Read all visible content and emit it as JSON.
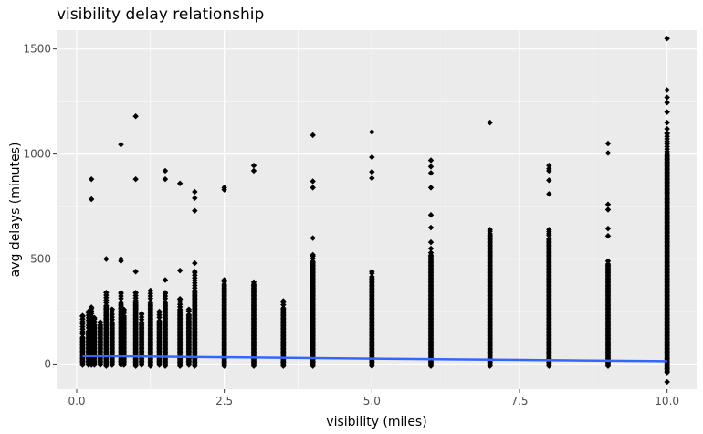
{
  "chart_data": {
    "type": "scatter",
    "title": "visibility delay relationship",
    "xlabel": "visibility (miles)",
    "ylabel": "avg delays (minutes)",
    "xlim": [
      -0.34,
      10.5
    ],
    "ylim": [
      -120,
      1590
    ],
    "x_ticks": [
      0.0,
      2.5,
      5.0,
      7.5,
      10.0
    ],
    "x_tick_labels": [
      "0.0",
      "2.5",
      "5.0",
      "7.5",
      "10.0"
    ],
    "y_ticks": [
      0,
      500,
      1000,
      1500
    ],
    "y_tick_labels": [
      "0",
      "500",
      "1000",
      "1500"
    ],
    "grid": true,
    "legend": "none",
    "colors": {
      "panel": "#ebebeb",
      "grid": "#ffffff",
      "points": "#000000",
      "trend": "#3366ff"
    },
    "columns": [
      {
        "x": 0.1,
        "min": -5,
        "dense_max": 130,
        "max": 230
      },
      {
        "x": 0.2,
        "min": -5,
        "dense_max": 160,
        "max": 250
      },
      {
        "x": 0.25,
        "min": -5,
        "dense_max": 180,
        "max": 270
      },
      {
        "x": 0.3,
        "min": -5,
        "dense_max": 190,
        "max": 220
      },
      {
        "x": 0.4,
        "min": -5,
        "dense_max": 190,
        "max": 200
      },
      {
        "x": 0.5,
        "min": -10,
        "dense_max": 280,
        "max": 340
      },
      {
        "x": 0.6,
        "min": -5,
        "dense_max": 200,
        "max": 260
      },
      {
        "x": 0.75,
        "min": -5,
        "dense_max": 300,
        "max": 340
      },
      {
        "x": 0.8,
        "min": -5,
        "dense_max": 230,
        "max": 260
      },
      {
        "x": 1.0,
        "min": -10,
        "dense_max": 290,
        "max": 340
      },
      {
        "x": 1.1,
        "min": -5,
        "dense_max": 200,
        "max": 240
      },
      {
        "x": 1.25,
        "min": -10,
        "dense_max": 300,
        "max": 350
      },
      {
        "x": 1.4,
        "min": -5,
        "dense_max": 210,
        "max": 250
      },
      {
        "x": 1.5,
        "min": -10,
        "dense_max": 300,
        "max": 340
      },
      {
        "x": 1.75,
        "min": -10,
        "dense_max": 260,
        "max": 310
      },
      {
        "x": 1.9,
        "min": -5,
        "dense_max": 240,
        "max": 260
      },
      {
        "x": 2.0,
        "min": -10,
        "dense_max": 350,
        "max": 440
      },
      {
        "x": 2.5,
        "min": -10,
        "dense_max": 380,
        "max": 400
      },
      {
        "x": 3.0,
        "min": -10,
        "dense_max": 380,
        "max": 390
      },
      {
        "x": 3.5,
        "min": -10,
        "dense_max": 270,
        "max": 300
      },
      {
        "x": 4.0,
        "min": -10,
        "dense_max": 490,
        "max": 520
      },
      {
        "x": 5.0,
        "min": -10,
        "dense_max": 420,
        "max": 440
      },
      {
        "x": 6.0,
        "min": -10,
        "dense_max": 520,
        "max": 530
      },
      {
        "x": 7.0,
        "min": -10,
        "dense_max": 620,
        "max": 640
      },
      {
        "x": 8.0,
        "min": -10,
        "dense_max": 600,
        "max": 620
      },
      {
        "x": 9.0,
        "min": -10,
        "dense_max": 480,
        "max": 490
      },
      {
        "x": 10.0,
        "min": -40,
        "dense_max": 1000,
        "max": 1100
      }
    ],
    "outliers": [
      {
        "x": 0.25,
        "y": 880
      },
      {
        "x": 0.25,
        "y": 785
      },
      {
        "x": 0.5,
        "y": 500
      },
      {
        "x": 0.75,
        "y": 1045
      },
      {
        "x": 0.75,
        "y": 500
      },
      {
        "x": 0.75,
        "y": 490
      },
      {
        "x": 1.0,
        "y": 1180
      },
      {
        "x": 1.0,
        "y": 880
      },
      {
        "x": 1.0,
        "y": 440
      },
      {
        "x": 1.5,
        "y": 920
      },
      {
        "x": 1.5,
        "y": 880
      },
      {
        "x": 1.5,
        "y": 400
      },
      {
        "x": 1.75,
        "y": 860
      },
      {
        "x": 1.75,
        "y": 445
      },
      {
        "x": 2.0,
        "y": 820
      },
      {
        "x": 2.0,
        "y": 790
      },
      {
        "x": 2.0,
        "y": 730
      },
      {
        "x": 2.0,
        "y": 480
      },
      {
        "x": 2.5,
        "y": 840
      },
      {
        "x": 2.5,
        "y": 830
      },
      {
        "x": 3.0,
        "y": 945
      },
      {
        "x": 3.0,
        "y": 920
      },
      {
        "x": 4.0,
        "y": 1090
      },
      {
        "x": 4.0,
        "y": 870
      },
      {
        "x": 4.0,
        "y": 840
      },
      {
        "x": 4.0,
        "y": 600
      },
      {
        "x": 5.0,
        "y": 1105
      },
      {
        "x": 5.0,
        "y": 985
      },
      {
        "x": 5.0,
        "y": 915
      },
      {
        "x": 5.0,
        "y": 885
      },
      {
        "x": 6.0,
        "y": 970
      },
      {
        "x": 6.0,
        "y": 940
      },
      {
        "x": 6.0,
        "y": 910
      },
      {
        "x": 6.0,
        "y": 840
      },
      {
        "x": 6.0,
        "y": 710
      },
      {
        "x": 6.0,
        "y": 650
      },
      {
        "x": 6.0,
        "y": 580
      },
      {
        "x": 6.0,
        "y": 550
      },
      {
        "x": 7.0,
        "y": 1150
      },
      {
        "x": 8.0,
        "y": 945
      },
      {
        "x": 8.0,
        "y": 930
      },
      {
        "x": 8.0,
        "y": 920
      },
      {
        "x": 8.0,
        "y": 875
      },
      {
        "x": 8.0,
        "y": 810
      },
      {
        "x": 8.0,
        "y": 630
      },
      {
        "x": 8.0,
        "y": 640
      },
      {
        "x": 9.0,
        "y": 1050
      },
      {
        "x": 9.0,
        "y": 1005
      },
      {
        "x": 9.0,
        "y": 760
      },
      {
        "x": 9.0,
        "y": 735
      },
      {
        "x": 9.0,
        "y": 645
      },
      {
        "x": 9.0,
        "y": 610
      },
      {
        "x": 10.0,
        "y": 1550
      },
      {
        "x": 10.0,
        "y": 1305
      },
      {
        "x": 10.0,
        "y": 1270
      },
      {
        "x": 10.0,
        "y": 1245
      },
      {
        "x": 10.0,
        "y": 1200
      },
      {
        "x": 10.0,
        "y": 1150
      },
      {
        "x": 10.0,
        "y": 1120
      },
      {
        "x": 10.0,
        "y": -85
      }
    ],
    "trend_line": [
      {
        "x": 0.1,
        "y": 38
      },
      {
        "x": 2.5,
        "y": 32
      },
      {
        "x": 5.0,
        "y": 25
      },
      {
        "x": 7.5,
        "y": 19
      },
      {
        "x": 10.0,
        "y": 13
      }
    ]
  }
}
